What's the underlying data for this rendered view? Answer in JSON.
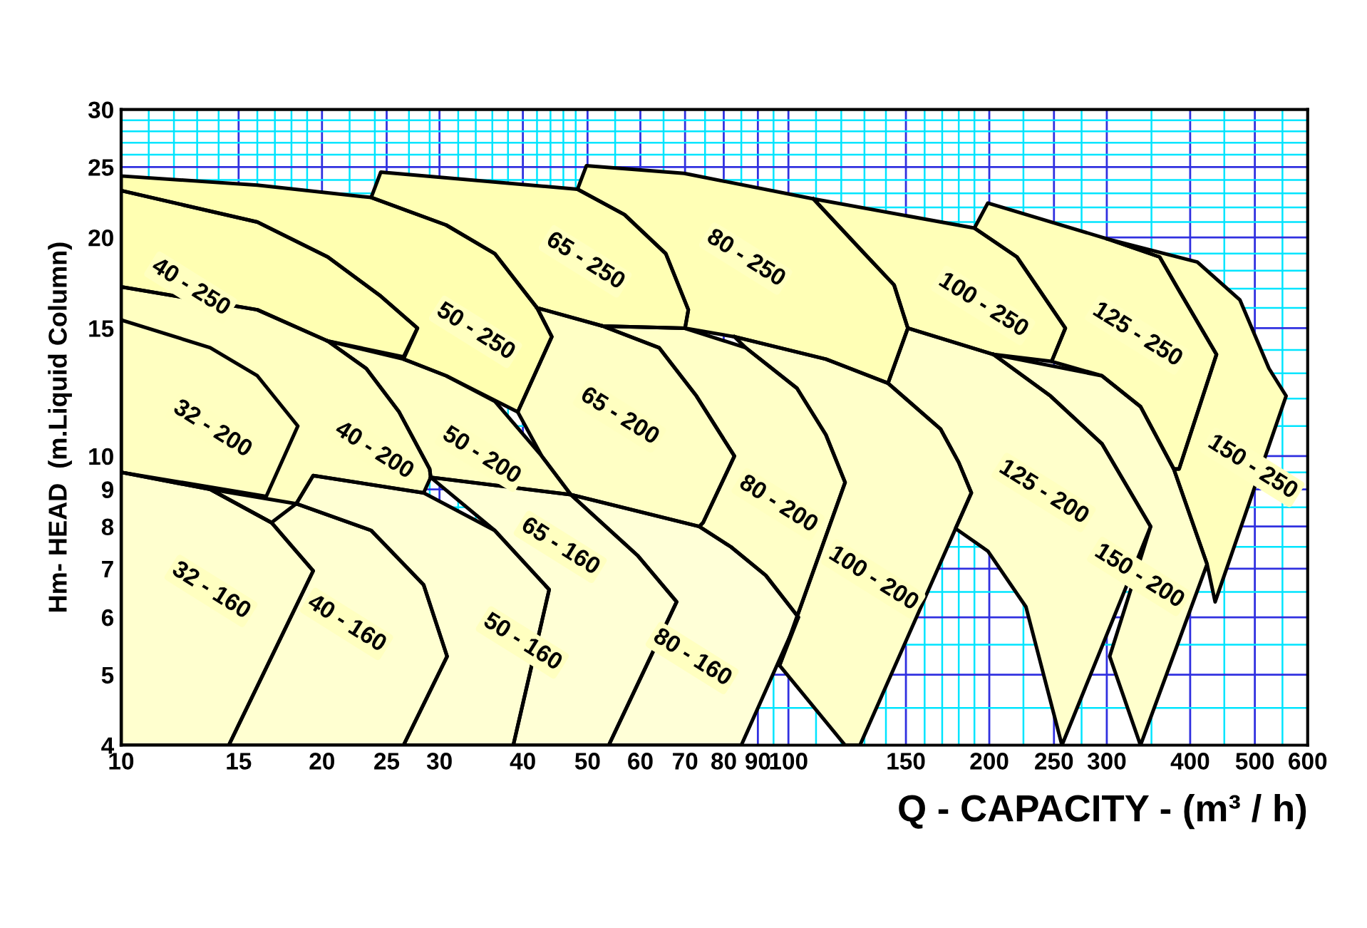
{
  "chart_data": {
    "type": "area",
    "xlabel": "Q - CAPACITY - (m³ / h)",
    "ylabel": "Hm- HEAD  (m.Liquid Column)",
    "log": "xy",
    "grid": true,
    "marker": "none",
    "line_style": "solid",
    "xlim": [
      10,
      600
    ],
    "ylim": [
      4,
      30
    ],
    "xticks": [
      10,
      15,
      20,
      25,
      30,
      40,
      50,
      60,
      70,
      80,
      90,
      100,
      150,
      200,
      250,
      300,
      400,
      500,
      600,
      {
        "value": 11,
        "label": null
      },
      {
        "value": 12,
        "label": null
      },
      {
        "value": 13,
        "label": null
      },
      {
        "value": 14,
        "label": null
      },
      {
        "value": 16,
        "label": null
      },
      {
        "value": 17,
        "label": null
      },
      {
        "value": 18,
        "label": null
      },
      {
        "value": 19,
        "label": null
      },
      {
        "value": 22,
        "label": null
      },
      {
        "value": 24,
        "label": null
      },
      {
        "value": 27,
        "label": null
      },
      {
        "value": 29,
        "label": null
      },
      {
        "value": 32,
        "label": null
      },
      {
        "value": 34,
        "label": null
      },
      {
        "value": 36,
        "label": null
      },
      {
        "value": 38,
        "label": null
      },
      {
        "value": 42,
        "label": null
      },
      {
        "value": 44,
        "label": null
      },
      {
        "value": 46,
        "label": null
      },
      {
        "value": 48,
        "label": null
      },
      {
        "value": 55,
        "label": null
      },
      {
        "value": 65,
        "label": null
      },
      {
        "value": 75,
        "label": null
      },
      {
        "value": 85,
        "label": null
      },
      {
        "value": 95,
        "label": null
      },
      {
        "value": 110,
        "label": null
      },
      {
        "value": 120,
        "label": null
      },
      {
        "value": 130,
        "label": null
      },
      {
        "value": 140,
        "label": null
      },
      {
        "value": 160,
        "label": null
      },
      {
        "value": 170,
        "label": null
      },
      {
        "value": 180,
        "label": null
      },
      {
        "value": 190,
        "label": null
      },
      {
        "value": 225,
        "label": null
      },
      {
        "value": 275,
        "label": null
      },
      {
        "value": 350,
        "label": null
      },
      {
        "value": 450,
        "label": null
      },
      {
        "value": 550,
        "label": null
      }
    ],
    "yticks": [
      4,
      5,
      6,
      7,
      8,
      9,
      10,
      15,
      20,
      25,
      30,
      {
        "value": 4.5,
        "label": null
      },
      {
        "value": 5.5,
        "label": null
      },
      {
        "value": 6.5,
        "label": null
      },
      {
        "value": 7.5,
        "label": null
      },
      {
        "value": 8.5,
        "label": null
      },
      {
        "value": 9.5,
        "label": null
      },
      {
        "value": 11,
        "label": null
      },
      {
        "value": 12,
        "label": null
      },
      {
        "value": 13,
        "label": null
      },
      {
        "value": 14,
        "label": null
      },
      {
        "value": 16,
        "label": null
      },
      {
        "value": 17,
        "label": null
      },
      {
        "value": 18,
        "label": null
      },
      {
        "value": 19,
        "label": null
      },
      {
        "value": 21,
        "label": null
      },
      {
        "value": 22,
        "label": null
      },
      {
        "value": 23,
        "label": null
      },
      {
        "value": 24,
        "label": null
      },
      {
        "value": 26,
        "label": null
      },
      {
        "value": 27,
        "label": null
      },
      {
        "value": 28,
        "label": null
      },
      {
        "value": 29,
        "label": null
      }
    ],
    "series": [
      {
        "name": "50 - 250",
        "color": "#ffffb0",
        "x": [
          10,
          16,
          23.7,
          30.7,
          36.3,
          42,
          44.2,
          39.3,
          30.7,
          26.5,
          27.8,
          24.5,
          20.4,
          16,
          10
        ],
        "values": [
          24.3,
          23.6,
          22.7,
          20.8,
          19.0,
          16.0,
          14.6,
          11.5,
          12.9,
          13.6,
          15.0,
          16.6,
          18.8,
          21.0,
          23.2
        ]
      },
      {
        "name": "40 - 250",
        "color": "#ffffb2",
        "x": [
          10,
          16,
          20.4,
          24.5,
          27.8,
          26.5,
          20.4,
          16,
          10
        ],
        "values": [
          23.2,
          21.0,
          18.8,
          16.6,
          15.0,
          13.7,
          14.4,
          15.9,
          17.1
        ]
      },
      {
        "name": "65 - 250",
        "color": "#ffffb4",
        "x": [
          23.7,
          24.5,
          48.3,
          56.8,
          65.5,
          70.8,
          70,
          52.7,
          42,
          36.3,
          30.7
        ],
        "values": [
          22.7,
          24.6,
          23.3,
          21.5,
          19.0,
          15.9,
          15.0,
          15.1,
          16.0,
          19.0,
          20.8
        ]
      },
      {
        "name": "80 - 250",
        "color": "#ffffb6",
        "x": [
          48.3,
          49.8,
          69.8,
          109,
          130,
          144,
          151,
          141,
          113.8,
          83,
          70,
          70.8,
          65.5,
          56.8
        ],
        "values": [
          23.3,
          25.1,
          24.5,
          22.6,
          19.0,
          17.2,
          15.0,
          12.6,
          13.6,
          14.6,
          15.0,
          15.9,
          19.0,
          21.5
        ]
      },
      {
        "name": "100 - 250",
        "color": "#ffffb8",
        "x": [
          109,
          190,
          220,
          260,
          248,
          203,
          151,
          144,
          130
        ],
        "values": [
          22.6,
          20.6,
          18.8,
          15.0,
          13.5,
          13.8,
          15.0,
          17.2,
          19.0
        ]
      },
      {
        "name": "125 - 250",
        "color": "#ffffba",
        "x": [
          190,
          199,
          301,
          360,
          385,
          438,
          385,
          378,
          337,
          295,
          248,
          260,
          220
        ],
        "values": [
          20.6,
          22.3,
          19.9,
          18.8,
          16.9,
          13.8,
          9.6,
          9.6,
          11.7,
          12.9,
          13.5,
          15.0,
          18.8
        ]
      },
      {
        "name": "150 - 250",
        "color": "#ffffbc",
        "x": [
          301,
          410,
          475,
          525,
          557,
          436,
          424,
          378,
          385,
          438,
          385,
          360
        ],
        "values": [
          19.9,
          18.5,
          16.4,
          13.2,
          12.1,
          6.3,
          7.1,
          9.6,
          9.6,
          13.8,
          16.9,
          18.8
        ]
      },
      {
        "name": "32 - 200",
        "color": "#ffffbe",
        "x": [
          10,
          13.6,
          16,
          18.4,
          16.5,
          10
        ],
        "values": [
          15.4,
          14.1,
          12.9,
          11.0,
          8.8,
          9.5
        ]
      },
      {
        "name": "40 - 200",
        "color": "#ffffc1",
        "x": [
          10,
          16,
          20.4,
          23.3,
          26.1,
          29,
          29.1,
          28.4,
          19.4,
          18.3,
          16.8,
          13.6,
          10
        ],
        "values": [
          17.1,
          15.9,
          14.4,
          13.2,
          11.5,
          9.6,
          9.35,
          8.9,
          9.4,
          8.6,
          8.1,
          9.0,
          9.5
        ]
      },
      {
        "name": "50 - 200",
        "color": "#ffffc3",
        "x": [
          20.4,
          26.5,
          30.7,
          36.3,
          42.7,
          47.2,
          29.1,
          29,
          26.1,
          23.3
        ],
        "values": [
          14.4,
          13.6,
          12.9,
          11.9,
          10.0,
          8.85,
          9.35,
          9.6,
          11.5,
          13.2
        ]
      },
      {
        "name": "65 - 200",
        "color": "#ffffc5",
        "x": [
          42,
          52.7,
          64,
          72.8,
          83,
          74.5,
          73.5,
          47.2,
          42.7,
          39.3,
          44.2
        ],
        "values": [
          16.0,
          15.1,
          14.1,
          12.1,
          10.0,
          8.1,
          8.0,
          8.85,
          10.0,
          11.5,
          14.6
        ]
      },
      {
        "name": "80 - 200",
        "color": "#ffffc7",
        "x": [
          52.7,
          69.8,
          86.3,
          103,
          113.8,
          121.6,
          97,
          103.5,
          92.5,
          82,
          73.5,
          74.5,
          83,
          72.8,
          64
        ],
        "values": [
          15.1,
          15.0,
          14.1,
          12.4,
          10.7,
          9.2,
          5.15,
          6.0,
          6.85,
          7.5,
          8.0,
          8.1,
          10.0,
          12.1,
          14.1
        ]
      },
      {
        "name": "100 - 200",
        "color": "#ffffc9",
        "x": [
          83,
          113.8,
          141,
          169,
          180,
          188,
          128,
          121.6,
          97,
          121.6,
          113.8,
          103,
          86.3
        ],
        "values": [
          14.6,
          13.6,
          12.6,
          10.9,
          9.8,
          8.9,
          4,
          4,
          5.15,
          9.2,
          10.7,
          12.4,
          14.1
        ]
      },
      {
        "name": "125 - 200",
        "color": "#ffffcb",
        "x": [
          151,
          203,
          247,
          295,
          349,
          257,
          227,
          199,
          178,
          188,
          180,
          169,
          141
        ],
        "values": [
          15.0,
          13.8,
          12.1,
          10.4,
          8.0,
          4,
          6.2,
          7.4,
          7.95,
          8.9,
          9.8,
          10.9,
          12.6
        ]
      },
      {
        "name": "150 - 200",
        "color": "#ffffcd",
        "x": [
          203,
          295,
          337,
          378,
          424,
          337,
          303,
          349,
          295,
          247
        ],
        "values": [
          13.8,
          12.9,
          11.7,
          9.6,
          7.1,
          4,
          5.3,
          8.0,
          10.4,
          12.1
        ]
      },
      {
        "name": "32 - 160",
        "color": "#ffffcf",
        "x": [
          10,
          13.6,
          16.8,
          19.4,
          14.5,
          10
        ],
        "values": [
          9.5,
          9.0,
          8.1,
          6.95,
          4,
          4
        ]
      },
      {
        "name": "40 - 160",
        "color": "#ffffd1",
        "x": [
          13.6,
          18.3,
          23.7,
          28.4,
          30.8,
          26.5,
          14.5,
          19.4,
          16.8
        ],
        "values": [
          9.0,
          8.6,
          7.9,
          6.65,
          5.3,
          4,
          4,
          6.95,
          8.1
        ]
      },
      {
        "name": "50 - 160",
        "color": "#ffffd3",
        "x": [
          18.3,
          19.4,
          28.4,
          36.3,
          43.8,
          38.7,
          26.5,
          30.8,
          28.4,
          23.7
        ],
        "values": [
          8.6,
          9.4,
          8.9,
          7.9,
          6.55,
          4,
          4,
          5.3,
          6.65,
          7.9
        ]
      },
      {
        "name": "65 - 160",
        "color": "#ffffd5",
        "x": [
          29.1,
          47.2,
          59.4,
          68,
          53.8,
          38.7,
          43.8,
          36.3
        ],
        "values": [
          9.35,
          8.85,
          7.3,
          6.3,
          4,
          4,
          6.55,
          7.9
        ]
      },
      {
        "name": "80 - 160",
        "color": "#ffffd7",
        "x": [
          47.2,
          73.5,
          82,
          92.5,
          103.5,
          85,
          53.8,
          68,
          59.4
        ],
        "values": [
          8.85,
          8.0,
          7.5,
          6.85,
          6.0,
          4,
          4,
          6.3,
          7.3
        ]
      }
    ]
  }
}
